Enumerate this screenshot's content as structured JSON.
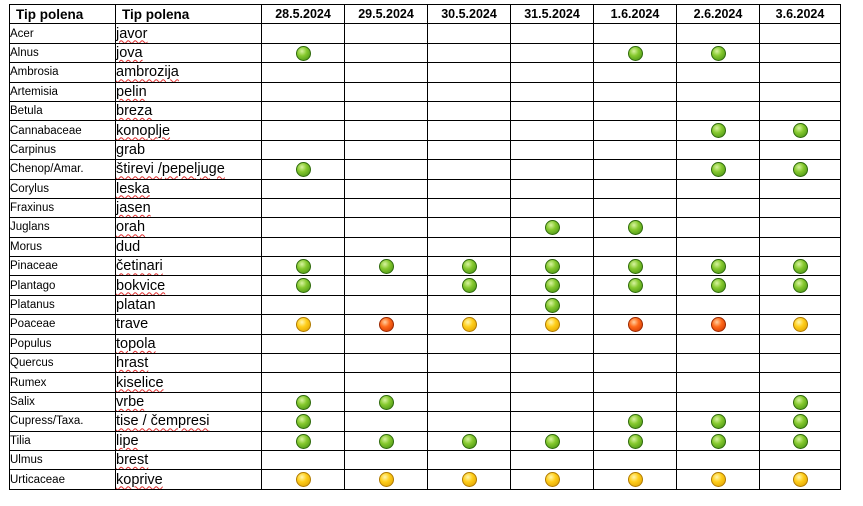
{
  "header": {
    "col_latin": "Tip polena",
    "col_local": "Tip polena",
    "dates": [
      "28.5.2024",
      "29.5.2024",
      "30.5.2024",
      "31.5.2024",
      "1.6.2024",
      "2.6.2024",
      "3.6.2024"
    ]
  },
  "legend_colors": {
    "green": "#6fb520",
    "yellow": "#ffcc00",
    "red": "#ff5a10"
  },
  "rows": [
    {
      "latin": "Acer",
      "local": "javor",
      "underline": true,
      "levels": [
        "",
        "",
        "",
        "",
        "",
        "",
        ""
      ]
    },
    {
      "latin": "Alnus",
      "local": "jova",
      "underline": true,
      "levels": [
        "green",
        "",
        "",
        "",
        "green",
        "green",
        ""
      ]
    },
    {
      "latin": "Ambrosia",
      "local": "ambrozija",
      "underline": true,
      "levels": [
        "",
        "",
        "",
        "",
        "",
        "",
        ""
      ]
    },
    {
      "latin": "Artemisia",
      "local": "pelin",
      "underline": true,
      "levels": [
        "",
        "",
        "",
        "",
        "",
        "",
        ""
      ]
    },
    {
      "latin": "Betula",
      "local": "breza",
      "underline": true,
      "levels": [
        "",
        "",
        "",
        "",
        "",
        "",
        ""
      ]
    },
    {
      "latin": "Cannabaceae",
      "local": "konoplje",
      "underline": true,
      "levels": [
        "",
        "",
        "",
        "",
        "",
        "green",
        "green"
      ]
    },
    {
      "latin": "Carpinus",
      "local": "grab",
      "underline": false,
      "levels": [
        "",
        "",
        "",
        "",
        "",
        "",
        ""
      ]
    },
    {
      "latin": "Chenop/Amar.",
      "local": "štirevi /pepeljuge",
      "underline": true,
      "levels": [
        "green",
        "",
        "",
        "",
        "",
        "green",
        "green"
      ]
    },
    {
      "latin": "Corylus",
      "local": "leska",
      "underline": true,
      "levels": [
        "",
        "",
        "",
        "",
        "",
        "",
        ""
      ]
    },
    {
      "latin": "Fraxinus",
      "local": "jasen",
      "underline": true,
      "levels": [
        "",
        "",
        "",
        "",
        "",
        "",
        ""
      ]
    },
    {
      "latin": "Juglans",
      "local": "orah",
      "underline": true,
      "levels": [
        "",
        "",
        "",
        "green",
        "green",
        "",
        ""
      ]
    },
    {
      "latin": "Morus",
      "local": "dud",
      "underline": false,
      "levels": [
        "",
        "",
        "",
        "",
        "",
        "",
        ""
      ]
    },
    {
      "latin": "Pinaceae",
      "local": "četinari",
      "underline": true,
      "levels": [
        "green",
        "green",
        "green",
        "green",
        "green",
        "green",
        "green"
      ]
    },
    {
      "latin": "Plantago",
      "local": "bokvice",
      "underline": true,
      "levels": [
        "green",
        "",
        "green",
        "green",
        "green",
        "green",
        "green"
      ]
    },
    {
      "latin": "Platanus",
      "local": "platan",
      "underline": false,
      "levels": [
        "",
        "",
        "",
        "green",
        "",
        "",
        ""
      ]
    },
    {
      "latin": "Poaceae",
      "local": "trave",
      "underline": false,
      "levels": [
        "yellow",
        "red",
        "yellow",
        "yellow",
        "red",
        "red",
        "yellow"
      ]
    },
    {
      "latin": "Populus",
      "local": "topola",
      "underline": true,
      "levels": [
        "",
        "",
        "",
        "",
        "",
        "",
        ""
      ]
    },
    {
      "latin": "Quercus",
      "local": "hrast",
      "underline": true,
      "levels": [
        "",
        "",
        "",
        "",
        "",
        "",
        ""
      ]
    },
    {
      "latin": "Rumex",
      "local": "kiselice",
      "underline": true,
      "levels": [
        "",
        "",
        "",
        "",
        "",
        "",
        ""
      ]
    },
    {
      "latin": "Salix",
      "local": "vrbe",
      "underline": true,
      "levels": [
        "green",
        "green",
        "",
        "",
        "",
        "",
        "green"
      ]
    },
    {
      "latin": "Cupress/Taxa.",
      "local": "tise / čempresi",
      "underline": true,
      "levels": [
        "green",
        "",
        "",
        "",
        "green",
        "green",
        "green"
      ]
    },
    {
      "latin": "Tilia",
      "local": "lipe",
      "underline": true,
      "levels": [
        "green",
        "green",
        "green",
        "green",
        "green",
        "green",
        "green"
      ]
    },
    {
      "latin": "Ulmus",
      "local": "brest",
      "underline": true,
      "levels": [
        "",
        "",
        "",
        "",
        "",
        "",
        ""
      ]
    },
    {
      "latin": "Urticaceae",
      "local": "koprive",
      "underline": true,
      "levels": [
        "yellow",
        "yellow",
        "yellow",
        "yellow",
        "yellow",
        "yellow",
        "yellow"
      ]
    }
  ]
}
